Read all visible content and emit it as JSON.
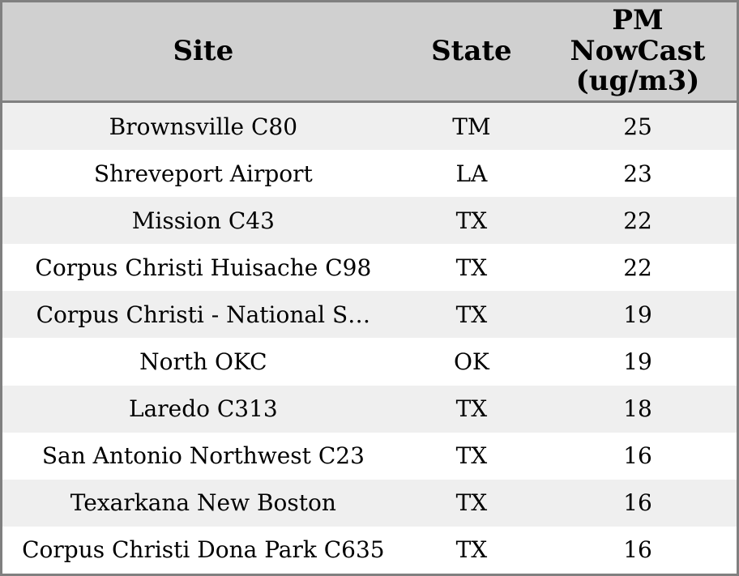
{
  "chart_data": {
    "type": "table",
    "title": "",
    "columns": [
      {
        "id": "site",
        "label": "Site"
      },
      {
        "id": "state",
        "label": "State"
      },
      {
        "id": "pm_nowcast",
        "label": "PM NowCast (ug/m3)",
        "label_lines": "PM\nNowCast\n(ug/m3)"
      }
    ],
    "rows": [
      {
        "site": "Brownsville C80",
        "state": "TM",
        "pm_nowcast": 25
      },
      {
        "site": "Shreveport Airport",
        "state": "LA",
        "pm_nowcast": 23
      },
      {
        "site": "Mission C43",
        "state": "TX",
        "pm_nowcast": 22
      },
      {
        "site": "Corpus Christi Huisache C98",
        "state": "TX",
        "pm_nowcast": 22
      },
      {
        "site": "Corpus Christi - National S…",
        "state": "TX",
        "pm_nowcast": 19
      },
      {
        "site": "North OKC",
        "state": "OK",
        "pm_nowcast": 19
      },
      {
        "site": "Laredo C313",
        "state": "TX",
        "pm_nowcast": 18
      },
      {
        "site": "San Antonio Northwest C23",
        "state": "TX",
        "pm_nowcast": 16
      },
      {
        "site": "Texarkana New Boston",
        "state": "TX",
        "pm_nowcast": 16
      },
      {
        "site": "Corpus Christi Dona Park C635",
        "state": "TX",
        "pm_nowcast": 16
      }
    ],
    "layout": {
      "grid": false,
      "row_striping": true,
      "alignment": "center"
    }
  },
  "colors": {
    "header_bg": "#d0d0d0",
    "row_alt_bg": "#efefef",
    "row_bg": "#ffffff",
    "border": "#808080",
    "text": "#000000"
  }
}
